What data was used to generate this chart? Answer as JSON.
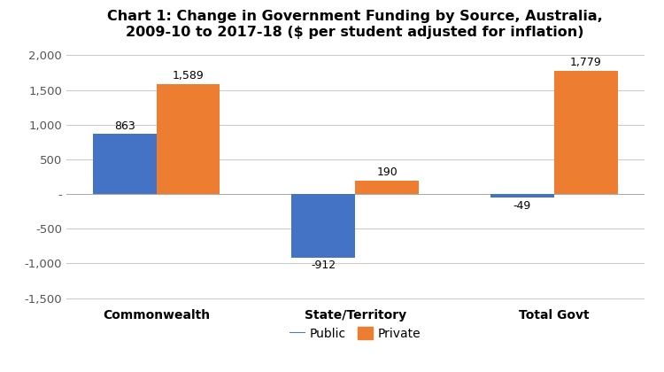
{
  "title_line1": "Chart 1: Change in Government Funding by Source, Australia,",
  "title_line2": "2009-10 to 2017-18 ($ per student adjusted for inflation)",
  "categories": [
    "Commonwealth",
    "State/Territory",
    "Total Govt"
  ],
  "public_values": [
    863,
    -912,
    -49
  ],
  "private_values": [
    1589,
    190,
    1779
  ],
  "public_color": "#4472C4",
  "private_color": "#ED7D31",
  "ylim": [
    -1600,
    2100
  ],
  "yticks": [
    -1500,
    -1000,
    -500,
    0,
    500,
    1000,
    1500,
    2000
  ],
  "ytick_labels": [
    "-1,500",
    "-1,000",
    "-500",
    "-",
    "500",
    "1,000",
    "1,500",
    "2,000"
  ],
  "bar_width": 0.32,
  "legend_labels": [
    "Public",
    "Private"
  ],
  "background_color": "#ffffff",
  "grid_color": "#c8c8c8",
  "title_fontsize": 11.5,
  "label_fontsize": 9,
  "tick_fontsize": 9.5,
  "legend_fontsize": 10,
  "xtick_fontsize": 10
}
